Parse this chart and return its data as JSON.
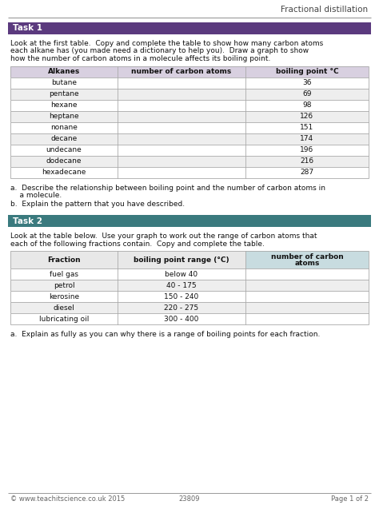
{
  "title": "Fractional distillation",
  "task1_header": "Task 1",
  "task1_intro_lines": [
    "Look at the first table.  Copy and complete the table to show how many carbon atoms",
    "each alkane has (you made need a dictionary to help you).  Draw a graph to show",
    "how the number of carbon atoms in a molecule affects its boiling point."
  ],
  "table1_headers": [
    "Alkanes",
    "number of carbon atoms",
    "boiling point °C"
  ],
  "table1_rows": [
    [
      "butane",
      "",
      "36"
    ],
    [
      "pentane",
      "",
      "69"
    ],
    [
      "hexane",
      "",
      "98"
    ],
    [
      "heptane",
      "",
      "126"
    ],
    [
      "nonane",
      "",
      "151"
    ],
    [
      "decane",
      "",
      "174"
    ],
    [
      "undecane",
      "",
      "196"
    ],
    [
      "dodecane",
      "",
      "216"
    ],
    [
      "hexadecane",
      "",
      "287"
    ]
  ],
  "task1_qa": [
    [
      "a.  Describe the relationship between boiling point and the number of carbon atoms in",
      "    a molecule."
    ],
    [
      "b.  Explain the pattern that you have described."
    ]
  ],
  "task2_header": "Task 2",
  "task2_intro_lines": [
    "Look at the table below.  Use your graph to work out the range of carbon atoms that",
    "each of the following fractions contain.  Copy and complete the table."
  ],
  "table2_headers": [
    "Fraction",
    "boiling point range (°C)",
    "number of carbon\natoms"
  ],
  "table2_rows": [
    [
      "fuel gas",
      "below 40",
      ""
    ],
    [
      "petrol",
      "40 - 175",
      ""
    ],
    [
      "kerosine",
      "150 - 240",
      ""
    ],
    [
      "diesel",
      "220 - 275",
      ""
    ],
    [
      "lubricating oil",
      "300 - 400",
      ""
    ]
  ],
  "task2_qa": [
    "a.  Explain as fully as you can why there is a range of boiling points for each fraction."
  ],
  "footer_left": "© www.teachitscience.co.uk 2015",
  "footer_center": "23809",
  "footer_right": "Page 1 of 2",
  "task1_banner_color": "#5b3a7e",
  "task2_banner_color": "#3a7a7e",
  "table1_header_bg": "#d8d0e0",
  "table2_header_col3_bg": "#c8dce0",
  "table2_header_col12_bg": "#e8e8e8",
  "row_alt_bg": "#eeeeee",
  "row_bg": "#ffffff",
  "border_color": "#aaaaaa",
  "header_text_color": "#ffffff",
  "bg_color": "#ffffff"
}
